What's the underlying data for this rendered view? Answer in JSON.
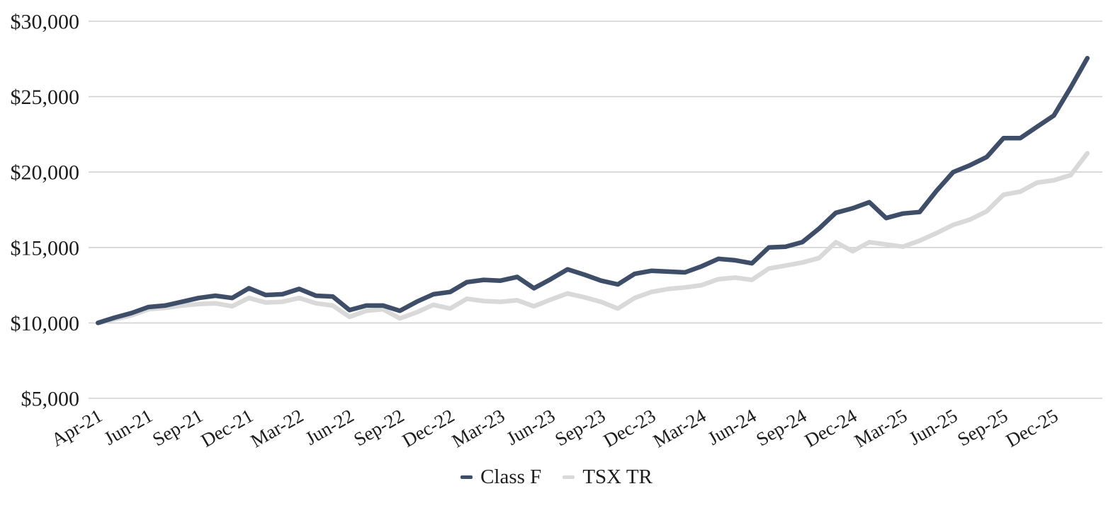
{
  "chart_data": {
    "type": "line",
    "title": "",
    "grid": "horizontal",
    "legend_position": "bottom",
    "x_categories": [
      "Apr-21",
      "Apr-21",
      "May-21",
      "Jun-21",
      "Jul-21",
      "Aug-21",
      "Sep-21",
      "Oct-21",
      "Nov-21",
      "Dec-21",
      "Jan-22",
      "Feb-22",
      "Mar-22",
      "Apr-22",
      "May-22",
      "Jun-22",
      "Jul-22",
      "Aug-22",
      "Sep-22",
      "Oct-22",
      "Nov-22",
      "Dec-22",
      "Jan-23",
      "Feb-23",
      "Mar-23",
      "Apr-23",
      "May-23",
      "Jun-23",
      "Jul-23",
      "Aug-23",
      "Sep-23",
      "Oct-23",
      "Nov-23",
      "Dec-23",
      "Jan-24",
      "Feb-24",
      "Mar-24",
      "Apr-24",
      "May-24",
      "Jun-24",
      "Jul-24",
      "Aug-24",
      "Sep-24",
      "Oct-24",
      "Nov-24",
      "Dec-24",
      "Jan-25",
      "Feb-25",
      "Mar-25",
      "Apr-25",
      "May-25",
      "Jun-25",
      "Jul-25",
      "Aug-25",
      "Sep-25",
      "Oct-25",
      "Nov-25",
      "Dec-25",
      "Jan-26",
      "Feb-26"
    ],
    "x_tick_interval": 3,
    "x_tick_labels": [
      "Apr-21",
      "Jun-21",
      "Sep-21",
      "Dec-21",
      "Mar-22",
      "Jun-22",
      "Sep-22",
      "Dec-22",
      "Mar-23",
      "Jun-23",
      "Sep-23",
      "Dec-23",
      "Mar-24",
      "Jun-24",
      "Sep-24",
      "Dec-24",
      "Mar-25",
      "Jun-25",
      "Sep-25",
      "Dec-25"
    ],
    "y_axis": {
      "min": 5000,
      "max": 30000,
      "step": 5000,
      "tick_values": [
        5000,
        10000,
        15000,
        20000,
        25000,
        30000
      ],
      "tick_labels": [
        "$5,000",
        "$10,000",
        "$15,000",
        "$20,000",
        "$25,000",
        "$30,000"
      ]
    },
    "series": [
      {
        "name": "Class F",
        "color": "#3f4e68",
        "values": [
          10000,
          10350,
          10650,
          11050,
          11150,
          11400,
          11650,
          11800,
          11650,
          12300,
          11850,
          11900,
          12250,
          11800,
          11750,
          10850,
          11150,
          11150,
          10800,
          11400,
          11900,
          12050,
          12700,
          12850,
          12800,
          13050,
          12300,
          12900,
          13550,
          13200,
          12800,
          12550,
          13250,
          13450,
          13400,
          13350,
          13750,
          14250,
          14150,
          13950,
          15000,
          15050,
          15350,
          16250,
          17300,
          17600,
          18000,
          16950,
          17250,
          17350,
          18750,
          20000,
          20450,
          21000,
          22250,
          22250,
          23000,
          23750,
          25600,
          27550
        ]
      },
      {
        "name": "TSX TR",
        "color": "#d9d9d9",
        "values": [
          10000,
          10250,
          10500,
          10900,
          11000,
          11150,
          11250,
          11300,
          11100,
          11650,
          11350,
          11400,
          11650,
          11300,
          11150,
          10400,
          10800,
          10900,
          10300,
          10700,
          11200,
          10950,
          11600,
          11450,
          11400,
          11500,
          11100,
          11550,
          11950,
          11700,
          11400,
          10950,
          11650,
          12050,
          12250,
          12350,
          12500,
          12900,
          13000,
          12850,
          13600,
          13800,
          14000,
          14300,
          15350,
          14750,
          15350,
          15200,
          15050,
          15450,
          15950,
          16500,
          16850,
          17400,
          18500,
          18700,
          19300,
          19450,
          19800,
          21250
        ]
      }
    ],
    "gridline_color": "#d2d2d2",
    "label_color": "#1d1d1d"
  }
}
